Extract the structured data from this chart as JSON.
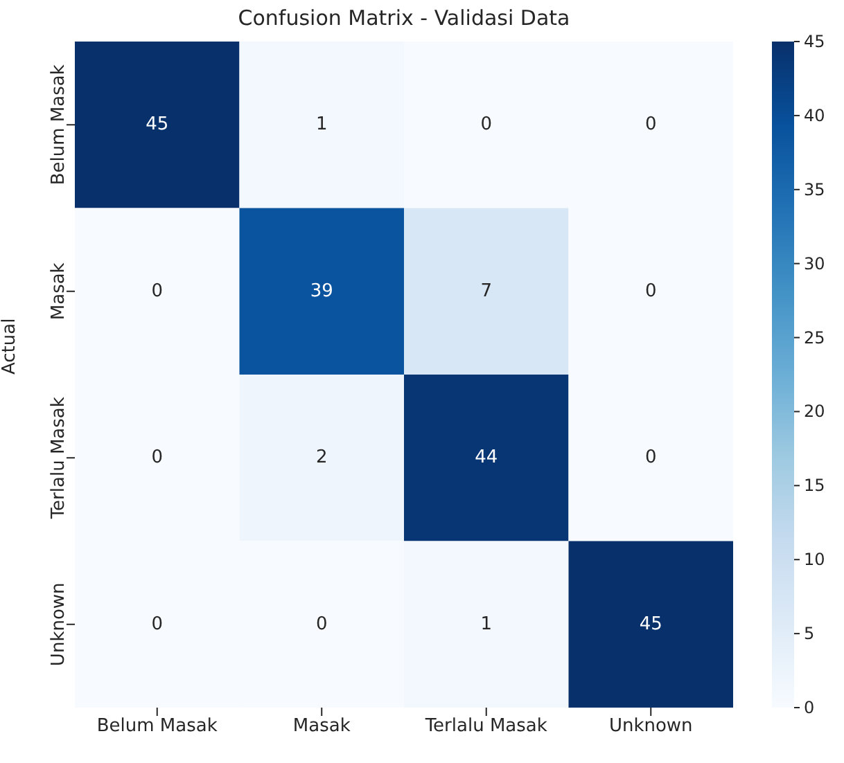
{
  "chart_data": {
    "type": "heatmap",
    "title": "Confusion Matrix - Validasi Data",
    "ylabel": "Actual",
    "categories": [
      "Belum Masak",
      "Masak",
      "Terlalu Masak",
      "Unknown"
    ],
    "y_categories": [
      "Belum Masak",
      "Masak",
      "Terlalu Masak",
      "Unknown"
    ],
    "cells": [
      [
        45,
        1,
        0,
        0
      ],
      [
        0,
        39,
        7,
        0
      ],
      [
        0,
        2,
        44,
        0
      ],
      [
        0,
        0,
        1,
        45
      ]
    ],
    "clim": [
      0,
      45
    ],
    "cticks": [
      0,
      5,
      10,
      15,
      20,
      25,
      30,
      35,
      40,
      45
    ],
    "data_labels": true
  }
}
